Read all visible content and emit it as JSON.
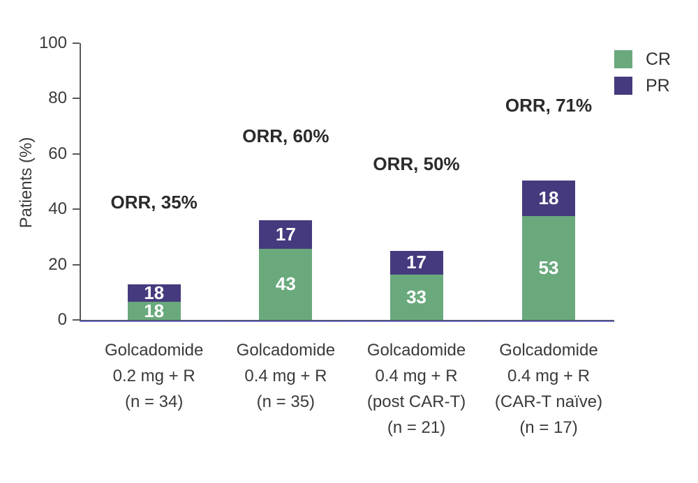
{
  "chart_data": {
    "type": "bar",
    "stacked": true,
    "title": "",
    "ylabel": "Patients (%)",
    "ylim": [
      0,
      100
    ],
    "yticks": [
      0,
      20,
      40,
      60,
      80,
      100
    ],
    "grid": false,
    "legend_position": "top-right",
    "categories": [
      {
        "lines": [
          "Golcadomide",
          "0.2 mg + R",
          "(n = 34)"
        ]
      },
      {
        "lines": [
          "Golcadomide",
          "0.4 mg + R",
          "(n = 35)"
        ]
      },
      {
        "lines": [
          "Golcadomide",
          "0.4 mg + R",
          "(post CAR-T)",
          "(n = 21)"
        ]
      },
      {
        "lines": [
          "Golcadomide",
          "0.4 mg + R",
          "(CAR-T naïve)",
          "(n = 17)"
        ]
      }
    ],
    "series": [
      {
        "name": "CR",
        "color": "#6aa97c",
        "values": [
          18,
          43,
          33,
          53
        ]
      },
      {
        "name": "PR",
        "color": "#463a7e",
        "values": [
          18,
          17,
          17,
          18
        ]
      }
    ],
    "totals_labels": [
      "ORR, 35%",
      "ORR, 60%",
      "ORR, 50%",
      "ORR, 71%"
    ]
  },
  "colors": {
    "cr_green": "#6aa97c",
    "pr_purple": "#463a7e",
    "axis_gray": "#58595b",
    "baseline_purple": "#7b7dd8",
    "label_dark": "#2b2b2e",
    "value_text": "#ffffff"
  }
}
